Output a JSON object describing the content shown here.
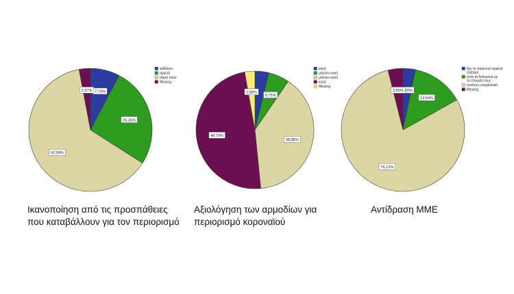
{
  "chart_data": [
    {
      "type": "pie",
      "title": "",
      "caption_lines": [
        "Ικανοποίηση από τις προσπάθειες",
        "που καταβάλλουν για τον περιορισμό"
      ],
      "legend_placement": "right",
      "slices": [
        {
          "label": "καθόλου",
          "value": 7.7,
          "data_label": "7,70%",
          "color": "#2a3d9e"
        },
        {
          "label": "αρκετά",
          "value": 26.36,
          "data_label": "26,36%",
          "color": "#2e9c1f"
        },
        {
          "label": "πάρα πολύ",
          "value": 62.99,
          "data_label": "62,99%",
          "color": "#dcd6a5"
        },
        {
          "label": "Missing",
          "value": 2.97,
          "data_label": "2,97%",
          "color": "#6b0e52"
        }
      ]
    },
    {
      "type": "pie",
      "title": "",
      "caption_lines": [
        "Αξιολόγηση των αρμοδίων για",
        "περιορισμό κοροναϊού"
      ],
      "legend_placement": "right",
      "slices": [
        {
          "label": "κακή",
          "value": 3.8,
          "data_label": "",
          "color": "#2a3d9e"
        },
        {
          "label": "μάλλον κακή",
          "value": 5.75,
          "data_label": "5,75%",
          "color": "#2e9c1f"
        },
        {
          "label": "μάλλον καλή",
          "value": 38.88,
          "data_label": "38,88%",
          "color": "#dcd6a5"
        },
        {
          "label": "καλή",
          "value": 48.79,
          "data_label": "48,79%",
          "color": "#6b0e52"
        },
        {
          "label": "Missing",
          "value": 2.8,
          "data_label": "2,80%",
          "color": "#f7ec7a"
        }
      ]
    },
    {
      "type": "pie",
      "title": "",
      "caption_lines": [
        "Αντίδραση ΜΜΕ"
      ],
      "legend_placement": "right",
      "slices": [
        {
          "label": "δεν τα παίρνουν αρκετά σοβαρά",
          "value": 3.25,
          "data_label": "3,25%",
          "color": "#2a3d9e"
        },
        {
          "label": "είναι τα δεδομένα με τα στοιχεία τους",
          "value": 13.64,
          "data_label": "13,64%",
          "color": "#2e9c1f"
        },
        {
          "label": "αναίτιον υπερβολικά",
          "value": 79.13,
          "data_label": "79,13%",
          "color": "#dcd6a5"
        },
        {
          "label": "Missing",
          "value": 3.9,
          "data_label": "3,90%",
          "color": "#6b0e52"
        }
      ]
    }
  ]
}
